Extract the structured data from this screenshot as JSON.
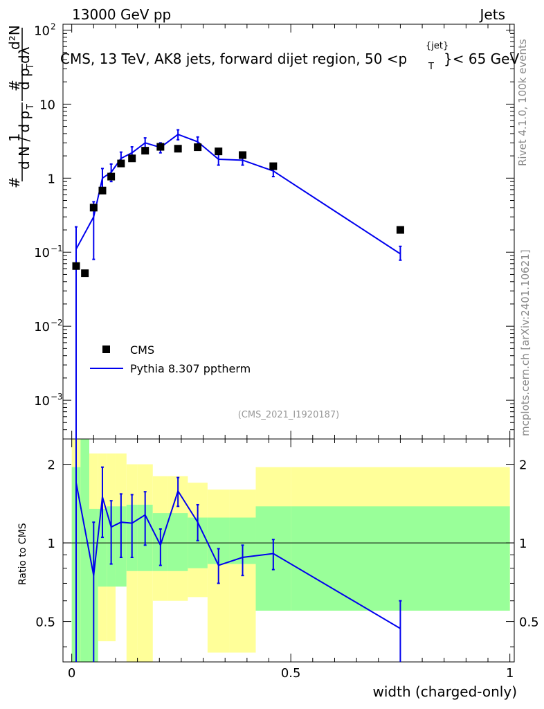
{
  "header": {
    "left": "13000 GeV pp",
    "right": "Jets",
    "title": "CMS, 13 TeV, AK8 jets, forward dijet region, 50 <p",
    "title_sup": "{jet}",
    "title_sub": "T",
    "title_end": "}< 65 GeV",
    "side_top": "Rivet 4.1.0,  100k events",
    "side_bottom": "mcplots.cern.ch [arXiv:2401.10621]",
    "analysis": "(CMS_2021_I1920187)"
  },
  "chart_data": {
    "type": "line",
    "x_label": "width (charged-only)",
    "y_label_main": "1/dN/dp_T dN/dp_T dλ",
    "y_label_ratio": "Ratio to CMS",
    "x_ticks": [
      "0",
      "0.5",
      "1"
    ],
    "y_ticks_main": [
      "10^-3",
      "10^-2",
      "10^-1",
      "1",
      "10",
      "10^2"
    ],
    "y_ticks_ratio": [
      "0.5",
      "1",
      "2"
    ],
    "xlim": [
      -0.02,
      1.01
    ],
    "ylim_main": [
      0.0003,
      120
    ],
    "ylim_ratio": [
      0.35,
      2.5
    ],
    "legend": [
      "CMS",
      "Pythia 8.307 pptherm"
    ],
    "bins": [
      [
        0.0,
        0.02
      ],
      [
        0.02,
        0.04
      ],
      [
        0.04,
        0.06
      ],
      [
        0.06,
        0.08
      ],
      [
        0.08,
        0.1
      ],
      [
        0.1,
        0.125
      ],
      [
        0.125,
        0.15
      ],
      [
        0.15,
        0.185
      ],
      [
        0.185,
        0.22
      ],
      [
        0.22,
        0.265
      ],
      [
        0.265,
        0.31
      ],
      [
        0.31,
        0.36
      ],
      [
        0.36,
        0.42
      ],
      [
        0.42,
        0.5
      ],
      [
        0.5,
        1.0
      ]
    ],
    "cms": {
      "x": [
        0.01,
        0.03,
        0.05,
        0.07,
        0.09,
        0.1125,
        0.1375,
        0.1675,
        0.2025,
        0.2425,
        0.2875,
        0.335,
        0.39,
        0.46,
        0.75
      ],
      "y": [
        0.065,
        0.052,
        0.4,
        0.68,
        1.05,
        1.58,
        1.85,
        2.35,
        2.65,
        2.5,
        2.62,
        2.3,
        2.05,
        1.45,
        0.2
      ]
    },
    "pythia": {
      "x": [
        0.01,
        0.05,
        0.07,
        0.09,
        0.1125,
        0.1375,
        0.1675,
        0.2025,
        0.2425,
        0.2875,
        0.335,
        0.39,
        0.46,
        0.75
      ],
      "y": [
        0.11,
        0.3,
        1.0,
        1.2,
        1.85,
        2.2,
        3.0,
        2.6,
        3.9,
        3.1,
        1.8,
        1.75,
        1.25,
        0.095
      ],
      "err_lo": [
        5e-05,
        0.08,
        0.65,
        0.9,
        1.45,
        1.75,
        2.5,
        2.2,
        3.3,
        2.6,
        1.5,
        1.5,
        1.05,
        0.078
      ],
      "err_hi": [
        0.22,
        0.48,
        1.35,
        1.55,
        2.25,
        2.65,
        3.5,
        3.0,
        4.5,
        3.6,
        2.1,
        2.05,
        1.45,
        0.12
      ]
    },
    "ratio": {
      "x": [
        0.01,
        0.05,
        0.07,
        0.09,
        0.1125,
        0.1375,
        0.1675,
        0.2025,
        0.2425,
        0.2875,
        0.335,
        0.39,
        0.46,
        0.75
      ],
      "y": [
        1.7,
        0.75,
        1.5,
        1.15,
        1.2,
        1.19,
        1.28,
        0.98,
        1.58,
        1.2,
        0.82,
        0.88,
        0.91,
        0.47
      ],
      "err_lo": [
        0.0,
        0.0,
        1.05,
        0.83,
        0.88,
        0.88,
        0.98,
        0.82,
        1.38,
        1.02,
        0.7,
        0.75,
        0.79,
        0.0
      ],
      "err_hi": [
        2.5,
        1.2,
        1.95,
        1.45,
        1.54,
        1.53,
        1.57,
        1.13,
        1.78,
        1.4,
        0.95,
        0.98,
        1.03,
        0.6
      ]
    },
    "band_yellow": {
      "lo": [
        0.0,
        0.0,
        0.0,
        0.42,
        0.42,
        0.75,
        0.35,
        0.35,
        0.6,
        0.6,
        0.62,
        0.38,
        0.38,
        0.55,
        0.55
      ],
      "hi": [
        2.5,
        2.5,
        2.2,
        2.2,
        2.2,
        2.2,
        2.0,
        2.0,
        1.8,
        1.8,
        1.7,
        1.6,
        1.6,
        1.95,
        1.95
      ]
    },
    "band_green": {
      "lo": [
        0.0,
        0.0,
        0.0,
        0.68,
        0.68,
        0.68,
        0.78,
        0.78,
        0.78,
        0.78,
        0.8,
        0.83,
        0.83,
        0.55,
        0.55
      ],
      "hi": [
        1.95,
        2.5,
        1.35,
        1.35,
        1.38,
        1.38,
        1.4,
        1.4,
        1.3,
        1.3,
        1.25,
        1.25,
        1.25,
        1.38,
        1.38
      ]
    }
  }
}
